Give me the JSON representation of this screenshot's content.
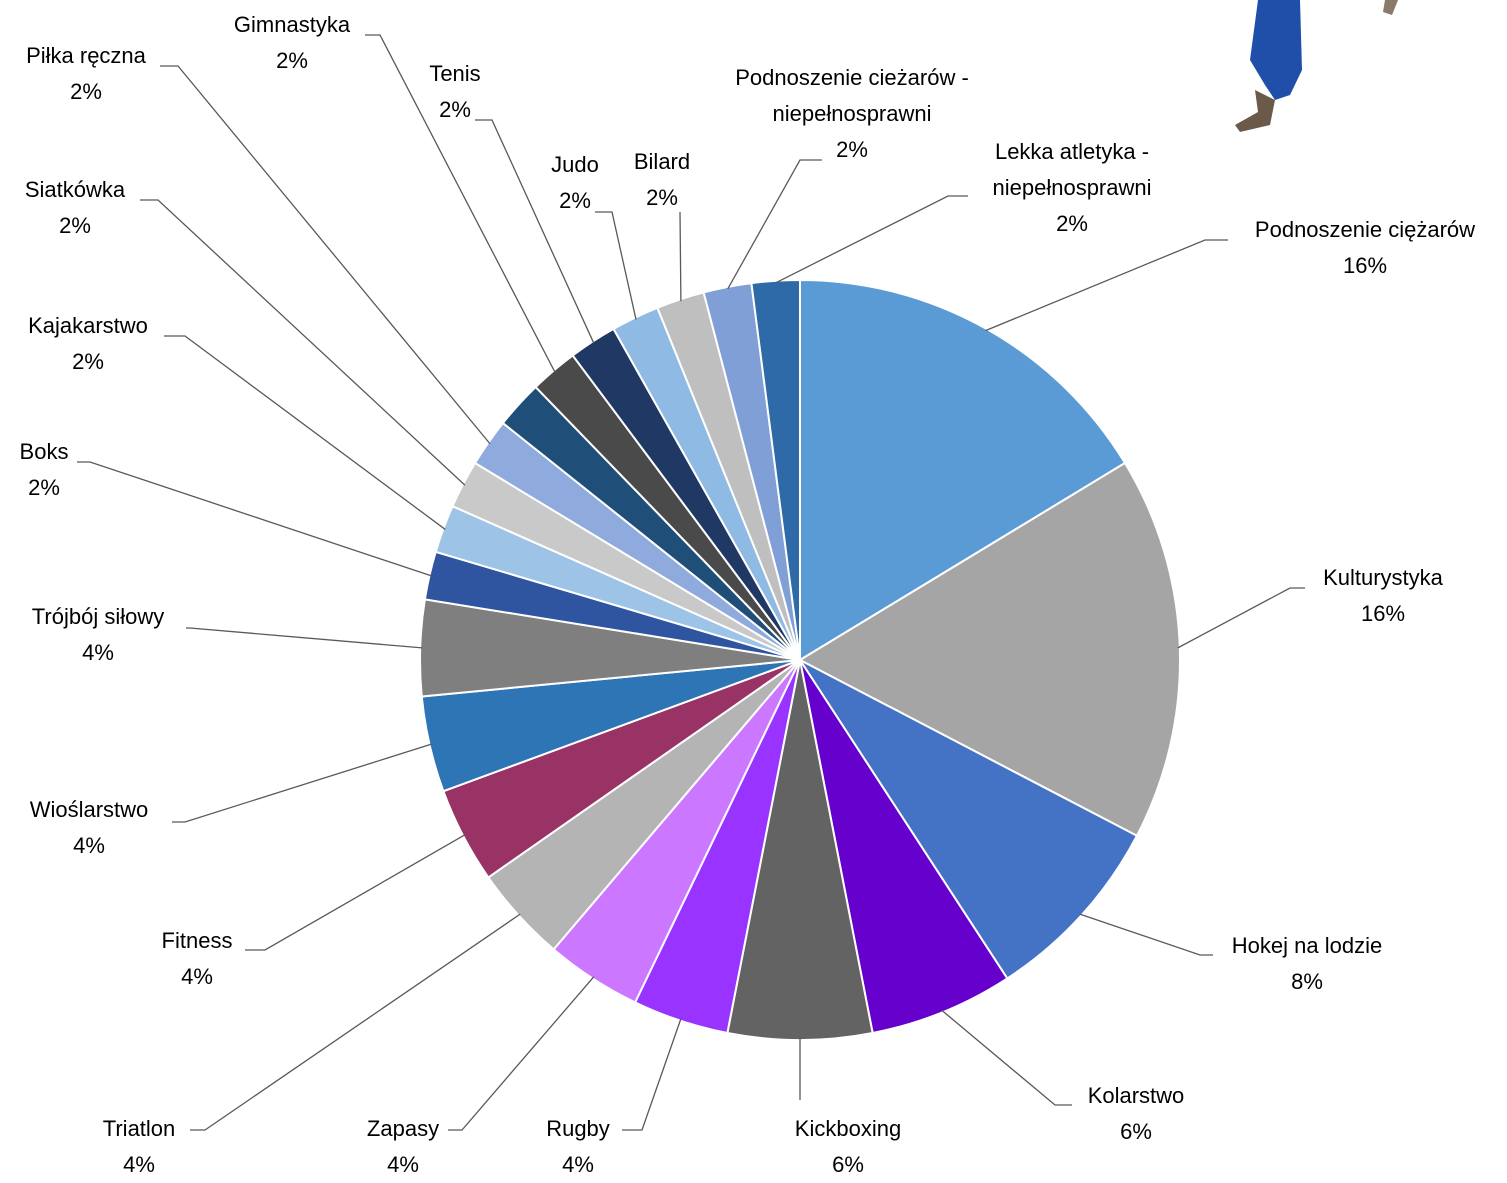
{
  "chart_data": {
    "type": "pie",
    "categories": [
      "Podnoszenie ciężarów",
      "Kulturystyka",
      "Hokej na lodzie",
      "Kolarstwo",
      "Kickboxing",
      "Rugby",
      "Zapasy",
      "Triatlon",
      "Fitness",
      "Wioślarstwo",
      "Trójbój siłowy",
      "Boks",
      "Kajakarstwo",
      "Siatkówka",
      "Piłka ręczna",
      null,
      "Gimnastyka",
      "Tenis",
      "Judo",
      "Bilard",
      "Podnoszenie cieżarów - niepełnosprawni",
      "Lekka atletyka - niepełnosprawni"
    ],
    "values": [
      16,
      16,
      8,
      6,
      6,
      4,
      4,
      4,
      4,
      4,
      4,
      2,
      2,
      2,
      2,
      2,
      2,
      2,
      2,
      2,
      2,
      2
    ],
    "value_labels": [
      "16%",
      "16%",
      "8%",
      "6%",
      "6%",
      "4%",
      "4%",
      "4%",
      "4%",
      "4%",
      "4%",
      "2%",
      "2%",
      "2%",
      "2%",
      null,
      "2%",
      "2%",
      "2%",
      "2%",
      "2%",
      "2%"
    ],
    "colors": [
      "#5b9bd5",
      "#a5a5a5",
      "#4472c4",
      "#6600cc",
      "#636363",
      "#9933ff",
      "#cc77ff",
      "#b4b4b4",
      "#993366",
      "#2e75b6",
      "#7f7f7f",
      "#2f55a0",
      "#9dc3e6",
      "#c9c9c9",
      "#8faadc",
      "#1f4e79",
      "#4a4a4a",
      "#203864",
      "#8ebae3",
      "#bfbfbf",
      "#7f9fd6",
      "#2e6aa8"
    ]
  }
}
